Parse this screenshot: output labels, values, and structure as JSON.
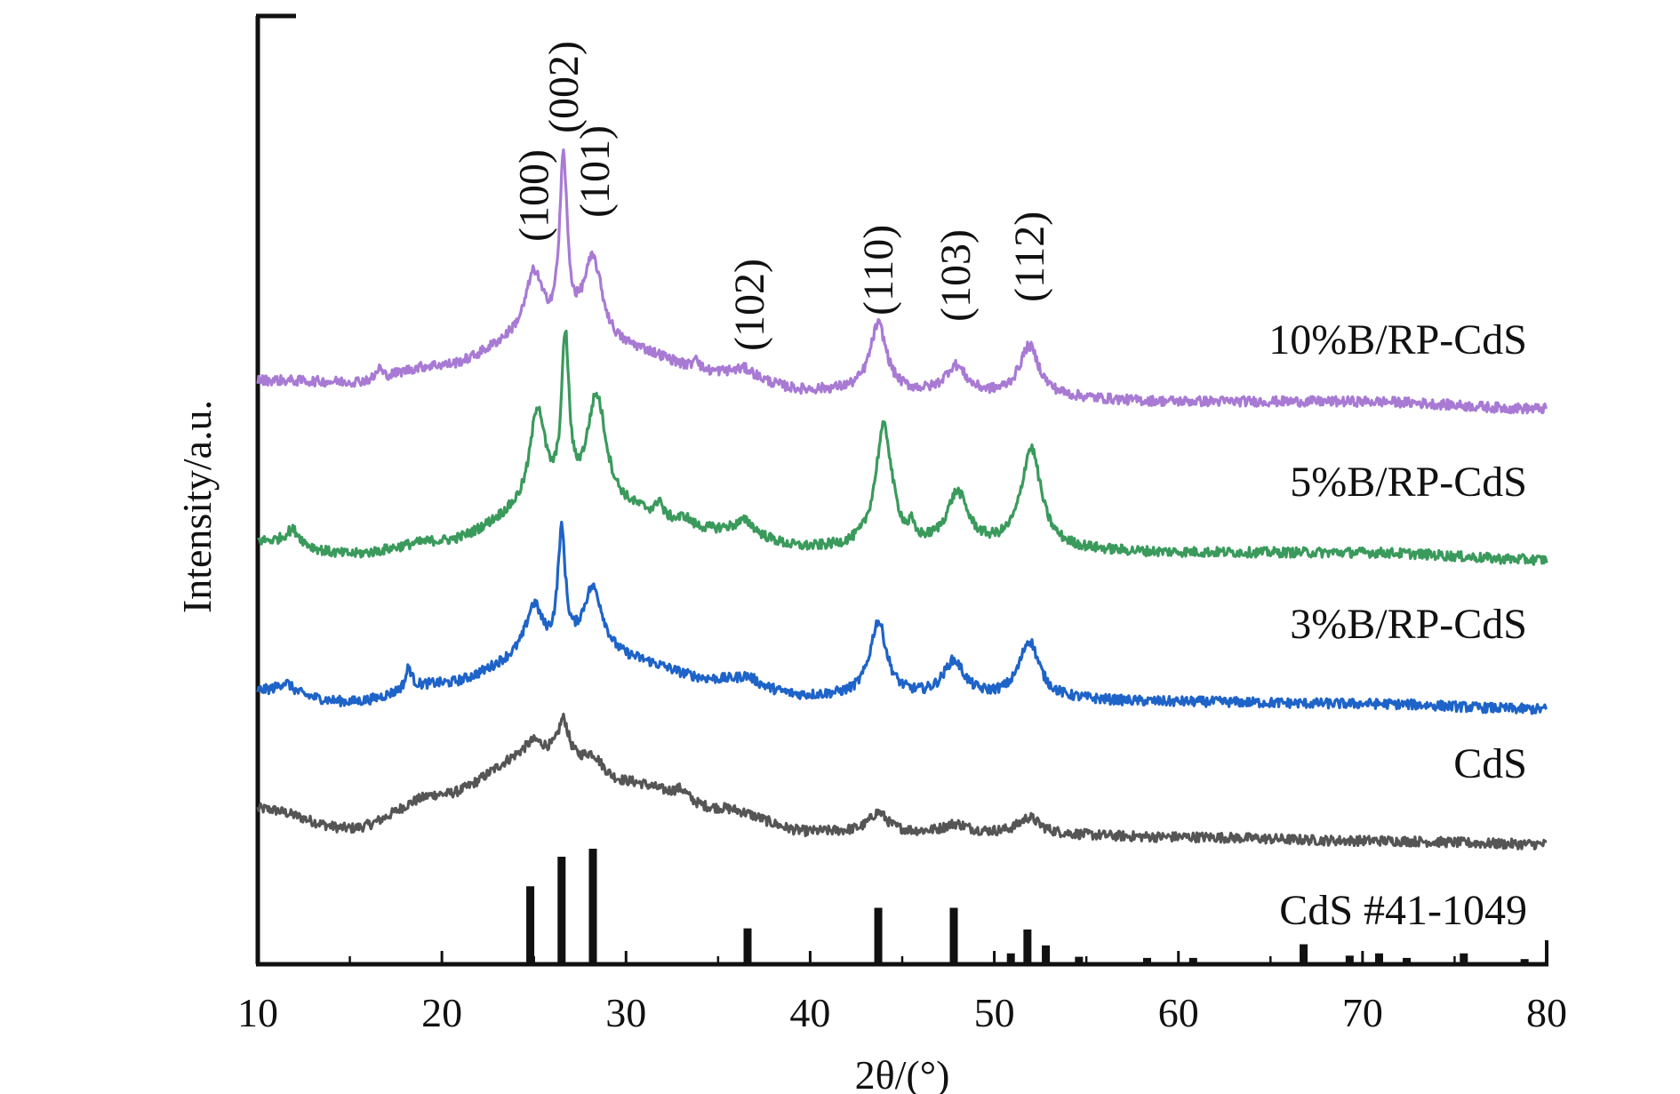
{
  "chart_data": {
    "type": "line",
    "title": "",
    "xlabel": "2θ/(°)",
    "ylabel": "Intensity/a.u.",
    "xlim": [
      10,
      80
    ],
    "xticks": [
      "10",
      "20",
      "30",
      "40",
      "50",
      "60",
      "70",
      "80"
    ],
    "grid": false,
    "legend": "labels placed at right end of each trace",
    "peak_labels": [
      {
        "text": "(100)",
        "x": 25.0
      },
      {
        "text": "(002)",
        "x": 26.6
      },
      {
        "text": "(101)",
        "x": 28.3
      },
      {
        "text": "(102)",
        "x": 36.7
      },
      {
        "text": "(110)",
        "x": 43.7
      },
      {
        "text": "(103)",
        "x": 47.9
      },
      {
        "text": "(112)",
        "x": 51.9
      }
    ],
    "reference": {
      "name": "CdS #41-1049",
      "type": "stick",
      "sticks": [
        {
          "x": 24.8,
          "i": 0.67
        },
        {
          "x": 26.5,
          "i": 0.93
        },
        {
          "x": 28.2,
          "i": 1.0
        },
        {
          "x": 36.6,
          "i": 0.3
        },
        {
          "x": 43.7,
          "i": 0.48
        },
        {
          "x": 47.8,
          "i": 0.48
        },
        {
          "x": 50.9,
          "i": 0.08
        },
        {
          "x": 51.8,
          "i": 0.29
        },
        {
          "x": 52.8,
          "i": 0.15
        },
        {
          "x": 54.6,
          "i": 0.05
        },
        {
          "x": 58.3,
          "i": 0.04
        },
        {
          "x": 60.8,
          "i": 0.04
        },
        {
          "x": 66.8,
          "i": 0.16
        },
        {
          "x": 69.3,
          "i": 0.06
        },
        {
          "x": 70.9,
          "i": 0.08
        },
        {
          "x": 72.4,
          "i": 0.04
        },
        {
          "x": 75.5,
          "i": 0.08
        },
        {
          "x": 78.8,
          "i": 0.03
        }
      ]
    },
    "series": [
      {
        "name": "CdS",
        "color": "#555555",
        "baseline": [
          [
            10,
            1.0
          ],
          [
            15,
            0.45
          ],
          [
            20,
            1.4
          ],
          [
            25,
            2.5
          ],
          [
            30,
            1.7
          ],
          [
            35,
            1.0
          ],
          [
            40,
            0.35
          ],
          [
            50,
            0.3
          ],
          [
            60,
            0.2
          ],
          [
            70,
            0.1
          ],
          [
            80,
            0.0
          ]
        ],
        "peaks": [
          [
            25.0,
            0.35,
            0.6
          ],
          [
            26.6,
            1.1,
            0.35
          ],
          [
            28.2,
            0.55,
            0.7
          ],
          [
            33.0,
            0.3,
            0.5
          ],
          [
            43.7,
            0.55,
            0.6
          ],
          [
            47.9,
            0.25,
            0.8
          ],
          [
            51.9,
            0.45,
            0.7
          ]
        ]
      },
      {
        "name": "3%B/RP-CdS",
        "color": "#1e63c8",
        "baseline": [
          [
            10,
            0.5
          ],
          [
            15,
            0.2
          ],
          [
            20,
            0.7
          ],
          [
            25,
            1.4
          ],
          [
            30,
            1.3
          ],
          [
            35,
            0.8
          ],
          [
            40,
            0.35
          ],
          [
            50,
            0.3
          ],
          [
            60,
            0.2
          ],
          [
            70,
            0.15
          ],
          [
            80,
            0.0
          ]
        ],
        "peaks": [
          [
            11.5,
            0.3,
            0.5
          ],
          [
            18.2,
            0.6,
            0.2
          ],
          [
            25.0,
            1.4,
            0.55
          ],
          [
            26.5,
            3.3,
            0.25
          ],
          [
            28.2,
            2.0,
            0.7
          ],
          [
            36.6,
            0.2,
            0.6
          ],
          [
            43.7,
            2.1,
            0.55
          ],
          [
            47.8,
            1.0,
            0.7
          ],
          [
            51.9,
            1.6,
            0.65
          ]
        ]
      },
      {
        "name": "5%B/RP-CdS",
        "color": "#3a9a5c",
        "baseline": [
          [
            10,
            0.5
          ],
          [
            15,
            0.15
          ],
          [
            20,
            0.5
          ],
          [
            25,
            1.3
          ],
          [
            30,
            1.3
          ],
          [
            35,
            0.8
          ],
          [
            40,
            0.3
          ],
          [
            50,
            0.3
          ],
          [
            60,
            0.2
          ],
          [
            70,
            0.2
          ],
          [
            80,
            0.0
          ]
        ],
        "peaks": [
          [
            11.9,
            0.45,
            0.5
          ],
          [
            25.2,
            2.8,
            0.5
          ],
          [
            26.7,
            4.5,
            0.25
          ],
          [
            28.4,
            3.2,
            0.65
          ],
          [
            31.8,
            0.45,
            0.15
          ],
          [
            33.2,
            0.2,
            0.3
          ],
          [
            36.5,
            0.35,
            0.6
          ],
          [
            44.0,
            3.4,
            0.55
          ],
          [
            45.5,
            0.35,
            0.15
          ],
          [
            48.0,
            1.5,
            0.7
          ],
          [
            52.0,
            2.8,
            0.65
          ]
        ]
      },
      {
        "name": "10%B/RP-CdS",
        "color": "#a87ad4",
        "baseline": [
          [
            10,
            0.8
          ],
          [
            15,
            0.75
          ],
          [
            20,
            1.2
          ],
          [
            25,
            2.0
          ],
          [
            30,
            1.6
          ],
          [
            35,
            1.0
          ],
          [
            40,
            0.5
          ],
          [
            50,
            0.35
          ],
          [
            60,
            0.2
          ],
          [
            70,
            0.2
          ],
          [
            80,
            0.0
          ]
        ],
        "peaks": [
          [
            16.6,
            0.3,
            0.15
          ],
          [
            25.0,
            1.7,
            0.55
          ],
          [
            26.6,
            4.8,
            0.25
          ],
          [
            28.2,
            2.4,
            0.65
          ],
          [
            33.8,
            0.4,
            0.15
          ],
          [
            36.5,
            0.2,
            0.6
          ],
          [
            43.7,
            1.9,
            0.55
          ],
          [
            47.9,
            0.8,
            0.7
          ],
          [
            51.9,
            1.4,
            0.65
          ]
        ]
      }
    ]
  }
}
